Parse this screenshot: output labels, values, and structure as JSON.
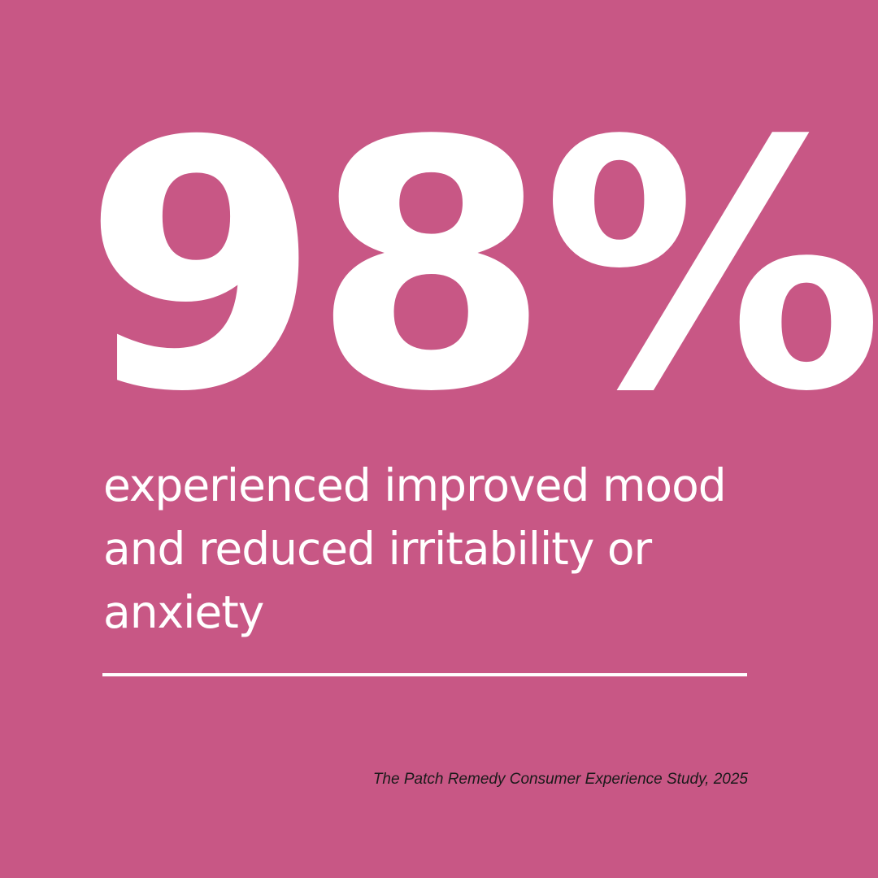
{
  "stat": {
    "value": "98%"
  },
  "description": "experienced improved mood and reduced irritability or anxiety",
  "source": "The Patch Remedy Consumer Experience Study, 2025",
  "colors": {
    "background": "#C85785",
    "primary_text": "#FFFFFF",
    "source_text": "#1A1A1A"
  }
}
